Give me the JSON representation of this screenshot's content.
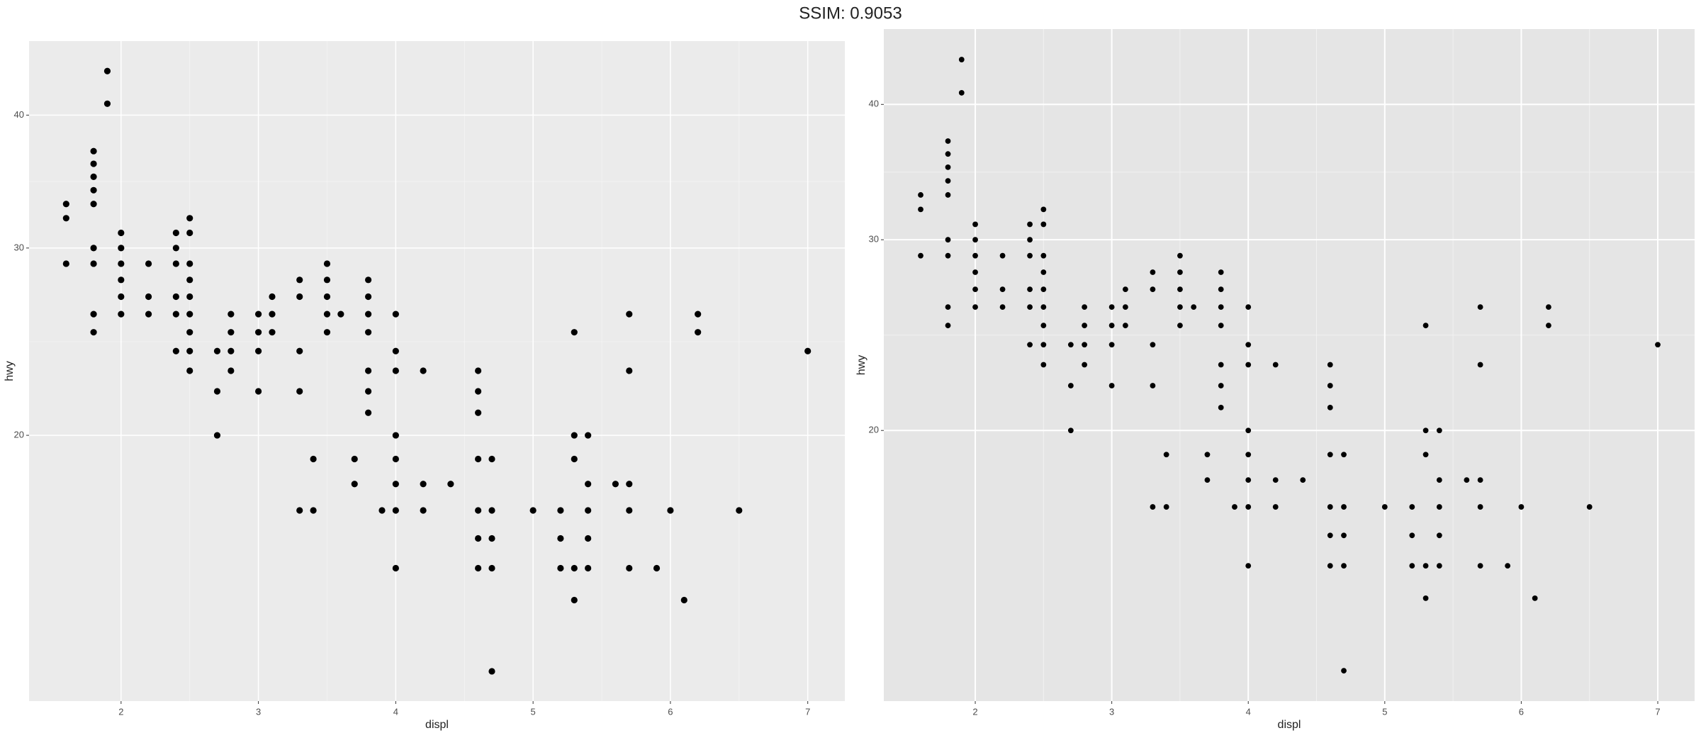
{
  "title": "SSIM: 0.9053",
  "chart_data": [
    {
      "type": "scatter",
      "x_label": "displ",
      "y_label": "hwy",
      "color": "#000000",
      "log_y": true,
      "grid": true,
      "xlim": [
        1.33,
        7.27
      ],
      "ylim": [
        11.25,
        46.95
      ],
      "xticks": [
        2,
        3,
        4,
        5,
        6,
        7
      ],
      "yticks": [
        20,
        30,
        40
      ],
      "x": [
        1.6,
        1.6,
        1.6,
        1.8,
        1.8,
        1.8,
        1.8,
        1.8,
        1.8,
        1.8,
        1.8,
        1.8,
        1.9,
        1.9,
        2,
        2,
        2,
        2,
        2,
        2,
        2.2,
        2.2,
        2.2,
        2.4,
        2.4,
        2.4,
        2.4,
        2.4,
        2.4,
        2.5,
        2.5,
        2.5,
        2.5,
        2.5,
        2.5,
        2.5,
        2.5,
        2.5,
        2.7,
        2.7,
        2.7,
        2.8,
        2.8,
        2.8,
        2.8,
        3,
        3,
        3,
        3,
        3.1,
        3.1,
        3.1,
        3.3,
        3.3,
        3.3,
        3.3,
        3.3,
        3.4,
        3.4,
        3.5,
        3.5,
        3.5,
        3.5,
        3.5,
        3.6,
        3.7,
        3.7,
        3.8,
        3.8,
        3.8,
        3.8,
        3.8,
        3.8,
        3.8,
        3.9,
        4,
        4,
        4,
        4,
        4,
        4,
        4,
        4,
        4.2,
        4.2,
        4.2,
        4.4,
        4.6,
        4.6,
        4.6,
        4.6,
        4.6,
        4.6,
        4.6,
        4.7,
        4.7,
        4.7,
        4.7,
        4.7,
        5,
        5.2,
        5.2,
        5.2,
        5.3,
        5.3,
        5.3,
        5.3,
        5.3,
        5.4,
        5.4,
        5.4,
        5.4,
        5.4,
        5.6,
        5.7,
        5.7,
        5.7,
        5.7,
        5.7,
        5.9,
        6,
        6.1,
        6.2,
        6.2,
        6.5,
        7
      ],
      "values": [
        29,
        32,
        33,
        25,
        26,
        29,
        30,
        33,
        34,
        35,
        36,
        37,
        41,
        44,
        26,
        27,
        28,
        29,
        30,
        31,
        26,
        27,
        29,
        24,
        26,
        27,
        29,
        30,
        31,
        23,
        24,
        25,
        26,
        27,
        28,
        29,
        31,
        32,
        20,
        22,
        24,
        23,
        24,
        25,
        26,
        22,
        24,
        25,
        26,
        25,
        26,
        27,
        17,
        22,
        24,
        27,
        28,
        17,
        19,
        25,
        26,
        27,
        28,
        29,
        26,
        18,
        19,
        21,
        22,
        23,
        25,
        26,
        27,
        28,
        17,
        15,
        17,
        18,
        19,
        20,
        23,
        24,
        26,
        17,
        18,
        23,
        18,
        15,
        16,
        17,
        19,
        21,
        22,
        23,
        12,
        15,
        16,
        17,
        19,
        17,
        15,
        16,
        17,
        14,
        15,
        19,
        20,
        25,
        15,
        16,
        17,
        18,
        20,
        18,
        15,
        17,
        18,
        23,
        26,
        15,
        17,
        14,
        25,
        26,
        17,
        24
      ]
    },
    {
      "type": "scatter",
      "x_label": "displ",
      "y_label": "hwy",
      "color": "#000000",
      "log_y": true,
      "grid": true,
      "xlim": [
        1.33,
        7.27
      ],
      "ylim": [
        11.25,
        46.95
      ],
      "xticks": [
        2,
        3,
        4,
        5,
        6,
        7
      ],
      "yticks": [
        20,
        30,
        40
      ],
      "x": [
        1.6,
        1.6,
        1.6,
        1.8,
        1.8,
        1.8,
        1.8,
        1.8,
        1.8,
        1.8,
        1.8,
        1.8,
        1.9,
        1.9,
        2,
        2,
        2,
        2,
        2,
        2,
        2.2,
        2.2,
        2.2,
        2.4,
        2.4,
        2.4,
        2.4,
        2.4,
        2.4,
        2.5,
        2.5,
        2.5,
        2.5,
        2.5,
        2.5,
        2.5,
        2.5,
        2.5,
        2.7,
        2.7,
        2.7,
        2.8,
        2.8,
        2.8,
        2.8,
        3,
        3,
        3,
        3,
        3.1,
        3.1,
        3.1,
        3.3,
        3.3,
        3.3,
        3.3,
        3.3,
        3.4,
        3.4,
        3.5,
        3.5,
        3.5,
        3.5,
        3.5,
        3.6,
        3.7,
        3.7,
        3.8,
        3.8,
        3.8,
        3.8,
        3.8,
        3.8,
        3.8,
        3.9,
        4,
        4,
        4,
        4,
        4,
        4,
        4,
        4,
        4.2,
        4.2,
        4.2,
        4.4,
        4.6,
        4.6,
        4.6,
        4.6,
        4.6,
        4.6,
        4.6,
        4.7,
        4.7,
        4.7,
        4.7,
        4.7,
        5,
        5.2,
        5.2,
        5.2,
        5.3,
        5.3,
        5.3,
        5.3,
        5.3,
        5.4,
        5.4,
        5.4,
        5.4,
        5.4,
        5.6,
        5.7,
        5.7,
        5.7,
        5.7,
        5.7,
        5.9,
        6,
        6.1,
        6.2,
        6.2,
        6.5,
        7
      ],
      "values": [
        29,
        32,
        33,
        25,
        26,
        29,
        30,
        33,
        34,
        35,
        36,
        37,
        41,
        44,
        26,
        27,
        28,
        29,
        30,
        31,
        26,
        27,
        29,
        24,
        26,
        27,
        29,
        30,
        31,
        23,
        24,
        25,
        26,
        27,
        28,
        29,
        31,
        32,
        20,
        22,
        24,
        23,
        24,
        25,
        26,
        22,
        24,
        25,
        26,
        25,
        26,
        27,
        17,
        22,
        24,
        27,
        28,
        17,
        19,
        25,
        26,
        27,
        28,
        29,
        26,
        18,
        19,
        21,
        22,
        23,
        25,
        26,
        27,
        28,
        17,
        15,
        17,
        18,
        19,
        20,
        23,
        24,
        26,
        17,
        18,
        23,
        18,
        15,
        16,
        17,
        19,
        21,
        22,
        23,
        12,
        15,
        16,
        17,
        19,
        17,
        15,
        16,
        17,
        14,
        15,
        19,
        20,
        25,
        15,
        16,
        17,
        18,
        20,
        18,
        15,
        17,
        18,
        23,
        26,
        15,
        17,
        14,
        25,
        26,
        17,
        24
      ]
    }
  ]
}
